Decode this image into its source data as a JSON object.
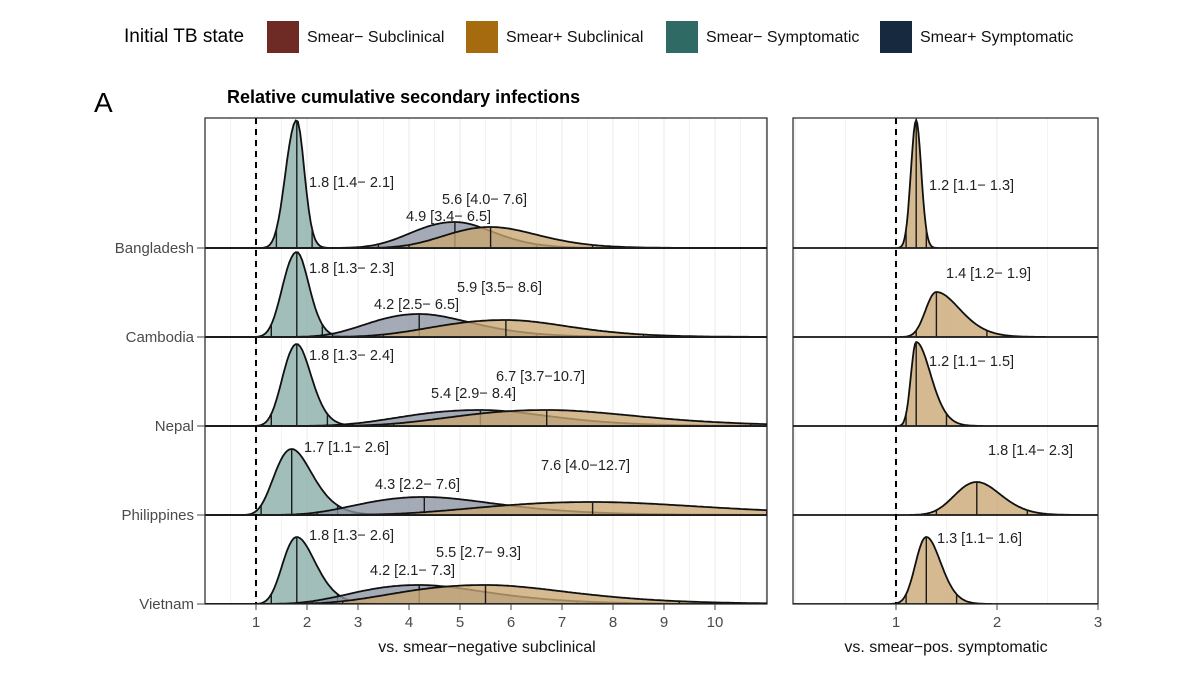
{
  "legend": {
    "title": "Initial TB state",
    "items": [
      {
        "label": "Smear− Subclinical",
        "color": "#6e2b26"
      },
      {
        "label": "Smear+ Subclinical",
        "color": "#a66a0f"
      },
      {
        "label": "Smear− Symptomatic",
        "color": "#2f6b64"
      },
      {
        "label": "Smear+ Symptomatic",
        "color": "#17293f"
      }
    ]
  },
  "panel_letter": "A",
  "title": "Relative cumulative secondary infections",
  "fill_colors": {
    "smear_neg_symptomatic": "#86aca7",
    "smear_pos_subclinical": "#c9a571",
    "smear_pos_symptomatic": "#8b93a3"
  },
  "chart_data": [
    {
      "type": "density",
      "title": "Relative cumulative secondary infections",
      "xlabel": "vs. smear−negative subclinical",
      "xlim": [
        0,
        11
      ],
      "xticks": [
        1,
        2,
        3,
        4,
        5,
        6,
        7,
        8,
        9,
        10
      ],
      "reference_line": 1,
      "countries": [
        "Bangladesh",
        "Cambodia",
        "Nepal",
        "Philippines",
        "Vietnam"
      ],
      "series": [
        {
          "state": "Smear− Symptomatic",
          "fill": "#86aca7",
          "median": [
            1.8,
            1.8,
            1.8,
            1.7,
            1.8
          ],
          "lower": [
            1.4,
            1.3,
            1.3,
            1.1,
            1.3
          ],
          "upper": [
            2.1,
            2.3,
            2.4,
            2.6,
            2.6
          ],
          "labels": [
            "1.8 [1.4− 2.1]",
            "1.8 [1.3− 2.3]",
            "1.8 [1.3− 2.4]",
            "1.7 [1.1− 2.6]",
            "1.8 [1.3− 2.6]"
          ]
        },
        {
          "state": "Smear+ Symptomatic",
          "fill": "#8b93a3",
          "median": [
            4.9,
            4.2,
            5.4,
            4.3,
            4.2
          ],
          "lower": [
            3.4,
            2.5,
            2.9,
            2.2,
            2.1
          ],
          "upper": [
            6.5,
            6.5,
            8.4,
            7.6,
            7.3
          ],
          "labels": [
            "4.9 [3.4− 6.5]",
            "4.2 [2.5− 6.5]",
            "5.4 [2.9− 8.4]",
            "4.3 [2.2− 7.6]",
            "4.2 [2.1− 7.3]"
          ]
        },
        {
          "state": "Smear+ Subclinical",
          "fill": "#c9a571",
          "median": [
            5.6,
            5.9,
            6.7,
            7.6,
            5.5
          ],
          "lower": [
            4.0,
            3.5,
            3.7,
            4.0,
            2.7
          ],
          "upper": [
            7.6,
            8.6,
            10.7,
            12.7,
            9.3
          ],
          "labels": [
            "5.6 [4.0− 7.6]",
            "5.9 [3.5− 8.6]",
            "6.7 [3.7−10.7]",
            "7.6 [4.0−12.7]",
            "5.5 [2.7− 9.3]"
          ]
        }
      ]
    },
    {
      "type": "density",
      "xlabel": "vs. smear−pos. symptomatic",
      "xlim": [
        0,
        3
      ],
      "xticks": [
        1,
        2,
        3
      ],
      "reference_line": 1,
      "countries": [
        "Bangladesh",
        "Cambodia",
        "Nepal",
        "Philippines",
        "Vietnam"
      ],
      "series": [
        {
          "state": "Smear+ Subclinical",
          "fill": "#c9a571",
          "median": [
            1.2,
            1.4,
            1.2,
            1.8,
            1.3
          ],
          "lower": [
            1.1,
            1.2,
            1.1,
            1.4,
            1.1
          ],
          "upper": [
            1.3,
            1.9,
            1.5,
            2.3,
            1.6
          ],
          "labels": [
            "1.2 [1.1− 1.3]",
            "1.4 [1.2− 1.9]",
            "1.2 [1.1− 1.5]",
            "1.8 [1.4− 2.3]",
            "1.3 [1.1− 1.6]"
          ]
        }
      ]
    }
  ]
}
